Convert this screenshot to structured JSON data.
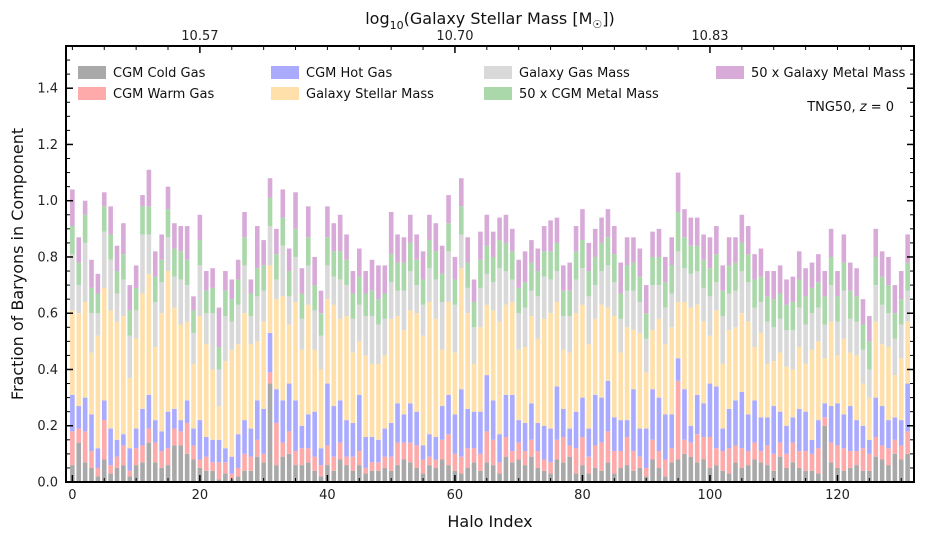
{
  "chart_data": {
    "type": "bar",
    "stacked": true,
    "xlabel": "Halo Index",
    "ylabel": "Fraction of Baryons in Component",
    "top_xlabel_main": "log",
    "top_xlabel_sub": "10",
    "top_xlabel_rest": "(Galaxy Stellar Mass [M",
    "top_xlabel_symbol": "☉",
    "top_xlabel_end": "])",
    "top_x_ticks": [
      {
        "index": 20,
        "label": "10.57"
      },
      {
        "index": 60,
        "label": "10.70"
      },
      {
        "index": 100,
        "label": "10.83"
      }
    ],
    "annotation": "TNG50, z = 0",
    "annotation_main": "TNG50, ",
    "annotation_var": "z",
    "annotation_rest": " = 0",
    "xlim": [
      -1,
      132
    ],
    "ylim": [
      0,
      1.55
    ],
    "x_ticks": [
      0,
      20,
      40,
      60,
      80,
      100,
      120
    ],
    "y_ticks": [
      0.0,
      0.2,
      0.4,
      0.6,
      0.8,
      1.0,
      1.2,
      1.4
    ],
    "grid": false,
    "legend_position": "top",
    "series": [
      {
        "name": "CGM Cold Gas",
        "color": "#a9a9a9",
        "values": [
          0.06,
          0.14,
          0.07,
          0.05,
          0.02,
          0.08,
          0.03,
          0.05,
          0.06,
          0.02,
          0.06,
          0.07,
          0.14,
          0.07,
          0.05,
          0.06,
          0.13,
          0.13,
          0.1,
          0.08,
          0.05,
          0.04,
          0.04,
          0.01,
          0.03,
          0.01,
          0.02,
          0.04,
          0.04,
          0.09,
          0.07,
          0.35,
          0.06,
          0.09,
          0.1,
          0.06,
          0.06,
          0.07,
          0.04,
          0.02,
          0.06,
          0.04,
          0.08,
          0.06,
          0.04,
          0.06,
          0.03,
          0.04,
          0.04,
          0.05,
          0.04,
          0.06,
          0.08,
          0.07,
          0.05,
          0.03,
          0.06,
          0.05,
          0.08,
          0.06,
          0.04,
          0.03,
          0.05,
          0.07,
          0.04,
          0.07,
          0.06,
          0.03,
          0.09,
          0.07,
          0.08,
          0.06,
          0.09,
          0.05,
          0.04,
          0.03,
          0.08,
          0.07,
          0.09,
          0.03,
          0.06,
          0.03,
          0.05,
          0.04,
          0.07,
          0.03,
          0.05,
          0.06,
          0.04,
          0.05,
          0.02,
          0.08,
          0.05,
          0.02,
          0.07,
          0.08,
          0.1,
          0.09,
          0.07,
          0.08,
          0.05,
          0.06,
          0.04,
          0.03,
          0.07,
          0.05,
          0.06,
          0.08,
          0.07,
          0.06,
          0.04,
          0.09,
          0.05,
          0.07,
          0.05,
          0.04,
          0.04,
          0.03,
          0.2,
          0.07,
          0.05,
          0.04,
          0.05,
          0.06,
          0.04,
          0.04,
          0.09,
          0.08,
          0.06,
          0.1,
          0.08,
          0.1
        ],
        "base_shade": 0.55
      },
      {
        "name": "CGM Warm Gas",
        "color": "#ffaaaa",
        "values": [
          0.12,
          0.05,
          0.11,
          0.06,
          0.03,
          0.14,
          0.03,
          0.04,
          0.07,
          0.02,
          0.06,
          0.06,
          0.05,
          0.07,
          0.06,
          0.06,
          0.06,
          0.05,
          0.11,
          0.05,
          0.03,
          0.05,
          0.03,
          0.06,
          0.04,
          0.02,
          0.03,
          0.06,
          0.05,
          0.06,
          0.03,
          0.04,
          0.15,
          0.05,
          0.08,
          0.05,
          0.06,
          0.05,
          0.05,
          0.04,
          0.07,
          0.05,
          0.06,
          0.03,
          0.05,
          0.05,
          0.02,
          0.03,
          0.03,
          0.04,
          0.05,
          0.08,
          0.06,
          0.07,
          0.08,
          0.05,
          0.03,
          0.03,
          0.07,
          0.11,
          0.06,
          0.06,
          0.07,
          0.05,
          0.06,
          0.11,
          0.09,
          0.04,
          0.07,
          0.04,
          0.06,
          0.05,
          0.06,
          0.06,
          0.04,
          0.04,
          0.07,
          0.09,
          0.04,
          0.09,
          0.1,
          0.06,
          0.08,
          0.1,
          0.11,
          0.08,
          0.06,
          0.1,
          0.07,
          0.04,
          0.03,
          0.07,
          0.06,
          0.06,
          0.05,
          0.28,
          0.05,
          0.05,
          0.1,
          0.08,
          0.11,
          0.06,
          0.07,
          0.09,
          0.06,
          0.07,
          0.05,
          0.06,
          0.04,
          0.07,
          0.06,
          0.05,
          0.05,
          0.07,
          0.06,
          0.07,
          0.06,
          0.09,
          0.03,
          0.07,
          0.08,
          0.08,
          0.06,
          0.05,
          0.08,
          0.06,
          0.07,
          0.05,
          0.06,
          0.05,
          0.05,
          0.08
        ],
        "base_shade": 0.55
      },
      {
        "name": "CGM Hot Gas",
        "color": "#aaaaff",
        "values": [
          0.13,
          0.08,
          0.12,
          0.13,
          0.07,
          0.07,
          0.13,
          0.06,
          0.04,
          0.08,
          0.07,
          0.13,
          0.12,
          0.08,
          0.07,
          0.13,
          0.07,
          0.04,
          0.08,
          0.06,
          0.14,
          0.07,
          0.08,
          0.08,
          0.05,
          0.06,
          0.12,
          0.12,
          0.1,
          0.14,
          0.16,
          0.14,
          0.12,
          0.15,
          0.17,
          0.18,
          0.08,
          0.12,
          0.16,
          0.06,
          0.22,
          0.18,
          0.15,
          0.13,
          0.12,
          0.2,
          0.11,
          0.09,
          0.08,
          0.1,
          0.12,
          0.14,
          0.1,
          0.14,
          0.12,
          0.05,
          0.08,
          0.08,
          0.12,
          0.14,
          0.14,
          0.24,
          0.14,
          0.13,
          0.15,
          0.2,
          0.14,
          0.1,
          0.15,
          0.2,
          0.08,
          0.1,
          0.13,
          0.1,
          0.12,
          0.12,
          0.19,
          0.1,
          0.06,
          0.13,
          0.14,
          0.1,
          0.18,
          0.16,
          0.18,
          0.12,
          0.11,
          0.06,
          0.22,
          0.1,
          0.14,
          0.18,
          0.19,
          0.16,
          0.12,
          0.08,
          0.18,
          0.06,
          0.14,
          0.12,
          0.19,
          0.22,
          0.08,
          0.14,
          0.16,
          0.2,
          0.13,
          0.15,
          0.12,
          0.1,
          0.17,
          0.11,
          0.1,
          0.09,
          0.15,
          0.14,
          0.05,
          0.1,
          0.05,
          0.13,
          0.15,
          0.12,
          0.16,
          0.11,
          0.08,
          0.05,
          0.14,
          0.14,
          0.1,
          0.08,
          0.09,
          0.17
        ],
        "base_shade": 0.55
      },
      {
        "name": "Galaxy Stellar Mass",
        "color": "#ffe0aa",
        "values": [
          0.3,
          0.33,
          0.34,
          0.22,
          0.4,
          0.4,
          0.42,
          0.42,
          0.42,
          0.25,
          0.32,
          0.41,
          0.43,
          0.26,
          0.42,
          0.5,
          0.36,
          0.34,
          0.28,
          0.23,
          0.37,
          0.33,
          0.25,
          0.12,
          0.31,
          0.38,
          0.32,
          0.38,
          0.3,
          0.21,
          0.31,
          0.24,
          0.32,
          0.37,
          0.21,
          0.35,
          0.27,
          0.39,
          0.22,
          0.28,
          0.3,
          0.36,
          0.29,
          0.37,
          0.25,
          0.19,
          0.29,
          0.26,
          0.27,
          0.26,
          0.37,
          0.31,
          0.3,
          0.33,
          0.35,
          0.39,
          0.47,
          0.42,
          0.2,
          0.33,
          0.22,
          0.43,
          0.34,
          0.17,
          0.3,
          0.25,
          0.32,
          0.4,
          0.32,
          0.33,
          0.25,
          0.27,
          0.31,
          0.3,
          0.38,
          0.41,
          0.3,
          0.21,
          0.27,
          0.35,
          0.33,
          0.3,
          0.27,
          0.33,
          0.26,
          0.36,
          0.24,
          0.33,
          0.21,
          0.34,
          0.2,
          0.21,
          0.28,
          0.25,
          0.31,
          0.2,
          0.31,
          0.42,
          0.32,
          0.29,
          0.17,
          0.27,
          0.23,
          0.28,
          0.26,
          0.28,
          0.33,
          0.19,
          0.3,
          0.19,
          0.16,
          0.21,
          0.21,
          0.17,
          0.22,
          0.17,
          0.32,
          0.28,
          0.16,
          0.3,
          0.17,
          0.27,
          0.19,
          0.23,
          0.15,
          0.15,
          0.27,
          0.22,
          0.26,
          0.15,
          0.22,
          0.22
        ],
        "base_shade": 0.55
      },
      {
        "name": "Galaxy Gas Mass",
        "color": "#d9d9d9",
        "values": [
          0.2,
          0.1,
          0.21,
          0.14,
          0.08,
          0.2,
          0.18,
          0.1,
          0.13,
          0.15,
          0.1,
          0.21,
          0.14,
          0.16,
          0.11,
          0.12,
          0.11,
          0.16,
          0.13,
          0.11,
          0.18,
          0.11,
          0.2,
          0.13,
          0.16,
          0.1,
          0.14,
          0.17,
          0.1,
          0.16,
          0.11,
          0.14,
          0.07,
          0.18,
          0.1,
          0.16,
          0.11,
          0.14,
          0.14,
          0.12,
          0.12,
          0.1,
          0.14,
          0.11,
          0.12,
          0.13,
          0.14,
          0.17,
          0.14,
          0.13,
          0.13,
          0.09,
          0.14,
          0.14,
          0.1,
          0.11,
          0.12,
          0.14,
          0.17,
          0.18,
          0.17,
          0.12,
          0.09,
          0.13,
          0.14,
          0.11,
          0.1,
          0.19,
          0.12,
          0.08,
          0.13,
          0.14,
          0.09,
          0.15,
          0.15,
          0.12,
          0.11,
          0.12,
          0.13,
          0.12,
          0.13,
          0.17,
          0.12,
          0.12,
          0.15,
          0.12,
          0.12,
          0.13,
          0.14,
          0.11,
          0.12,
          0.16,
          0.12,
          0.13,
          0.12,
          0.18,
          0.12,
          0.12,
          0.12,
          0.12,
          0.14,
          0.1,
          0.17,
          0.13,
          0.13,
          0.15,
          0.14,
          0.14,
          0.11,
          0.15,
          0.12,
          0.12,
          0.13,
          0.14,
          0.14,
          0.14,
          0.13,
          0.12,
          0.12,
          0.13,
          0.12,
          0.17,
          0.12,
          0.12,
          0.12,
          0.1,
          0.13,
          0.14,
          0.12,
          0.13,
          0.12,
          0.11
        ],
        "base_shade": 0.55
      },
      {
        "name": "50 x CGM Metal Mass",
        "color": "#aad8aa",
        "values": [
          0.1,
          0.08,
          0.1,
          0.09,
          0.07,
          0.09,
          0.09,
          0.08,
          0.09,
          0.09,
          0.08,
          0.1,
          0.1,
          0.09,
          0.08,
          0.1,
          0.1,
          0.1,
          0.09,
          0.08,
          0.09,
          0.08,
          0.09,
          0.08,
          0.09,
          0.08,
          0.09,
          0.1,
          0.08,
          0.1,
          0.09,
          0.1,
          0.09,
          0.1,
          0.09,
          0.1,
          0.09,
          0.1,
          0.09,
          0.08,
          0.1,
          0.09,
          0.1,
          0.09,
          0.09,
          0.1,
          0.08,
          0.09,
          0.09,
          0.09,
          0.1,
          0.1,
          0.1,
          0.1,
          0.09,
          0.09,
          0.1,
          0.1,
          0.1,
          0.1,
          0.09,
          0.1,
          0.09,
          0.09,
          0.1,
          0.1,
          0.09,
          0.1,
          0.1,
          0.1,
          0.09,
          0.09,
          0.1,
          0.09,
          0.09,
          0.1,
          0.1,
          0.09,
          0.09,
          0.1,
          0.1,
          0.09,
          0.1,
          0.1,
          0.1,
          0.1,
          0.09,
          0.09,
          0.1,
          0.09,
          0.09,
          0.1,
          0.1,
          0.09,
          0.1,
          0.14,
          0.11,
          0.1,
          0.09,
          0.1,
          0.1,
          0.1,
          0.09,
          0.1,
          0.1,
          0.1,
          0.1,
          0.1,
          0.09,
          0.09,
          0.1,
          0.09,
          0.09,
          0.1,
          0.1,
          0.1,
          0.09,
          0.09,
          0.1,
          0.1,
          0.09,
          0.1,
          0.1,
          0.09,
          0.09,
          0.1,
          0.1,
          0.1,
          0.1,
          0.09,
          0.09,
          0.1
        ],
        "base_shade": 0.55
      },
      {
        "name": "50 x Galaxy Metal Mass",
        "color": "#d8aad8",
        "values": [
          0.13,
          0.09,
          0.05,
          0.1,
          0.07,
          0.05,
          0.1,
          0.09,
          0.11,
          0.09,
          0.08,
          0.04,
          0.13,
          0.09,
          0.09,
          0.08,
          0.09,
          0.09,
          0.12,
          0.05,
          0.09,
          0.07,
          0.07,
          0.14,
          0.07,
          0.07,
          0.07,
          0.09,
          0.05,
          0.15,
          0.09,
          0.07,
          0.09,
          0.1,
          0.08,
          0.13,
          0.09,
          0.11,
          0.1,
          0.08,
          0.11,
          0.1,
          0.13,
          0.09,
          0.08,
          0.1,
          0.08,
          0.11,
          0.12,
          0.1,
          0.15,
          0.1,
          0.09,
          0.1,
          0.09,
          0.1,
          0.09,
          0.1,
          0.1,
          0.1,
          0.08,
          0.1,
          0.09,
          0.08,
          0.1,
          0.11,
          0.09,
          0.08,
          0.1,
          0.08,
          0.1,
          0.11,
          0.08,
          0.08,
          0.09,
          0.11,
          0.09,
          0.09,
          0.1,
          0.09,
          0.11,
          0.1,
          0.1,
          0.09,
          0.1,
          0.1,
          0.11,
          0.1,
          0.09,
          0.1,
          0.1,
          0.09,
          0.1,
          0.09,
          0.1,
          0.14,
          0.1,
          0.1,
          0.1,
          0.09,
          0.11,
          0.1,
          0.09,
          0.1,
          0.09,
          0.1,
          0.1,
          0.09,
          0.1,
          0.09,
          0.1,
          0.1,
          0.09,
          0.09,
          0.1,
          0.1,
          0.09,
          0.1,
          0.09,
          0.1,
          0.09,
          0.1,
          0.1,
          0.1,
          0.09,
          0.09,
          0.1,
          0.09,
          0.1,
          0.1,
          0.1,
          0.1
        ],
        "base_shade": 0.55
      }
    ]
  }
}
